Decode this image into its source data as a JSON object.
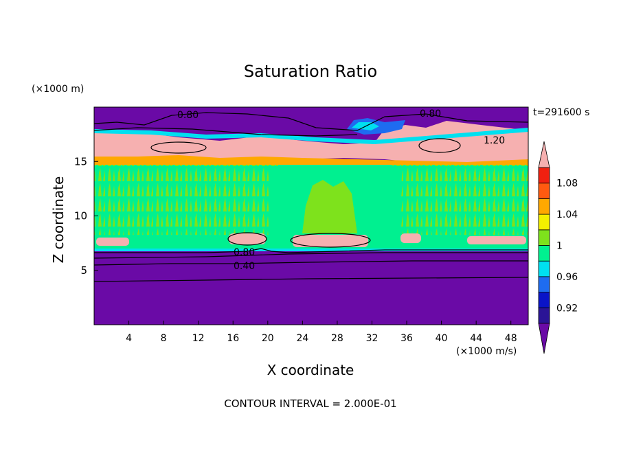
{
  "chart_data": {
    "type": "heatmap",
    "title": "Saturation Ratio",
    "xlabel": "X coordinate",
    "ylabel": "Z coordinate",
    "x_unit": "(×1000 m/s)",
    "y_unit": "(×1000 m)",
    "time_label": "t=291600 s",
    "footer": "CONTOUR INTERVAL = 2.000E-01",
    "xlim": [
      0,
      50
    ],
    "ylim": [
      0,
      20
    ],
    "x_ticks": [
      "4",
      "8",
      "12",
      "16",
      "20",
      "24",
      "28",
      "32",
      "36",
      "40",
      "44",
      "48"
    ],
    "y_ticks": [
      "5",
      "10",
      "15"
    ],
    "colorbar": {
      "labels": [
        "1.08",
        "1.04",
        "1",
        "0.96",
        "0.92"
      ],
      "colors": [
        "#6a0aa6",
        "#2a1496",
        "#0a14c8",
        "#1e6cf0",
        "#00e0f0",
        "#00f090",
        "#7ee21c",
        "#f4f000",
        "#ffa800",
        "#ff5a10",
        "#f02010",
        "#f6b0b0"
      ]
    },
    "contour_labels": [
      "0.80",
      "0.80",
      "1.20",
      "0.80",
      "0.40"
    ],
    "regions": [
      {
        "z": [
          0,
          6.6
        ],
        "value": "<0.92"
      },
      {
        "z": [
          6.6,
          8.0
        ],
        "value": "~1.0"
      },
      {
        "z": [
          8.0,
          15.0
        ],
        "value": "0.98-1.02"
      },
      {
        "z": [
          15.0,
          17.8
        ],
        "value": ">1.10"
      },
      {
        "z": [
          17.8,
          20
        ],
        "value": "<0.92"
      }
    ]
  }
}
